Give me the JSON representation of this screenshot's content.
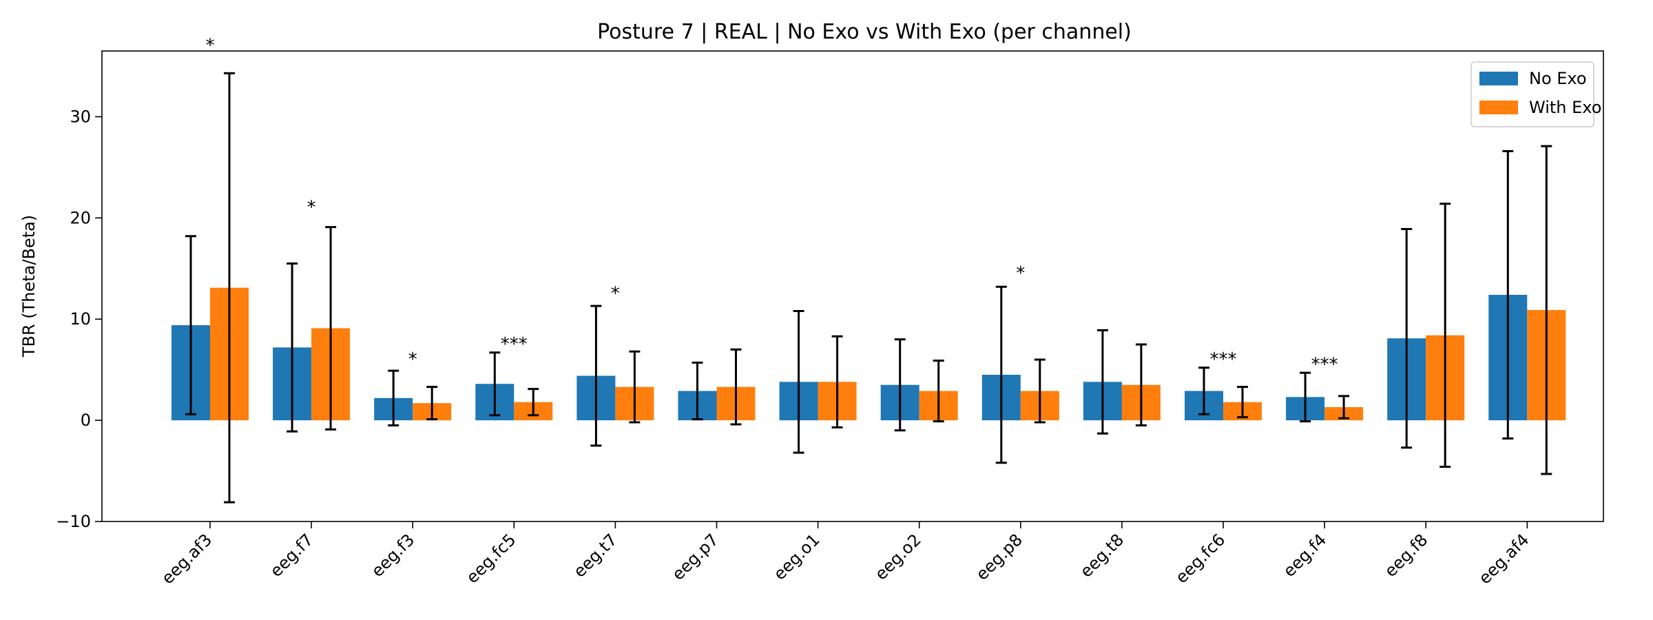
{
  "chart_data": {
    "type": "bar",
    "title": "Posture 7 | REAL | No Exo vs With Exo (per channel)",
    "xlabel": "",
    "ylabel": "TBR (Theta/Beta)",
    "ylim": [
      -10,
      36.5
    ],
    "yticks": [
      -10,
      0,
      10,
      20,
      30
    ],
    "grid": false,
    "legend_position": "top-right",
    "categories": [
      "eeg.af3",
      "eeg.f7",
      "eeg.f3",
      "eeg.fc5",
      "eeg.t7",
      "eeg.p7",
      "eeg.o1",
      "eeg.o2",
      "eeg.p8",
      "eeg.t8",
      "eeg.fc6",
      "eeg.f4",
      "eeg.f8",
      "eeg.af4"
    ],
    "series": [
      {
        "name": "No Exo",
        "color": "#1f77b4",
        "values": [
          9.4,
          7.2,
          2.2,
          3.6,
          4.4,
          2.9,
          3.8,
          3.5,
          4.5,
          3.8,
          2.9,
          2.3,
          8.1,
          12.4
        ],
        "error": [
          8.8,
          8.3,
          2.7,
          3.1,
          6.9,
          2.8,
          7.0,
          4.5,
          8.7,
          5.1,
          2.3,
          2.4,
          10.8,
          14.2
        ]
      },
      {
        "name": "With Exo",
        "color": "#ff7f0e",
        "values": [
          13.1,
          9.1,
          1.7,
          1.8,
          3.3,
          3.3,
          3.8,
          2.9,
          2.9,
          3.5,
          1.8,
          1.3,
          8.4,
          10.9
        ],
        "error": [
          21.2,
          10.0,
          1.6,
          1.3,
          3.5,
          3.7,
          4.5,
          3.0,
          3.1,
          4.0,
          1.5,
          1.1,
          13.0,
          16.2
        ]
      }
    ],
    "significance": [
      "*",
      "*",
      "*",
      "***",
      "*",
      "",
      "",
      "",
      "*",
      "",
      "***",
      "***",
      "",
      ""
    ],
    "significance_y": [
      37.0,
      21.0,
      6.0,
      7.5,
      12.5,
      null,
      null,
      null,
      14.5,
      null,
      6.0,
      5.5,
      null,
      null
    ]
  }
}
